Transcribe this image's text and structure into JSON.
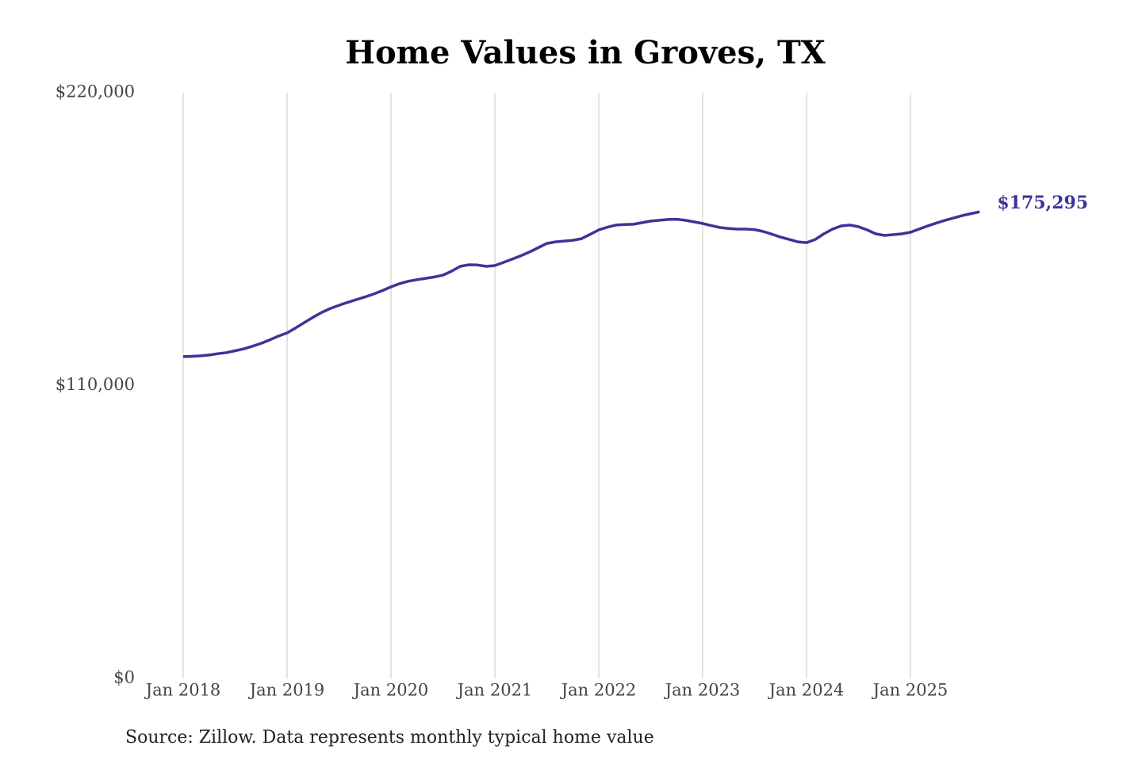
{
  "chart_data": {
    "type": "line",
    "title": "Home Values in Groves, TX",
    "source": "Source: Zillow. Data represents monthly typical home value",
    "categories": [
      "Jan 2018",
      null,
      null,
      null,
      null,
      null,
      null,
      null,
      null,
      null,
      null,
      null,
      "Jan 2019",
      null,
      null,
      null,
      null,
      null,
      null,
      null,
      null,
      null,
      null,
      null,
      "Jan 2020",
      null,
      null,
      null,
      null,
      null,
      null,
      null,
      null,
      null,
      null,
      null,
      "Jan 2021",
      null,
      null,
      null,
      null,
      null,
      null,
      null,
      null,
      null,
      null,
      null,
      "Jan 2022",
      null,
      null,
      null,
      null,
      null,
      null,
      null,
      null,
      null,
      null,
      null,
      "Jan 2023",
      null,
      null,
      null,
      null,
      null,
      null,
      null,
      null,
      null,
      null,
      null,
      "Jan 2024",
      null,
      null,
      null,
      null,
      null,
      null,
      null,
      null,
      null,
      null,
      null,
      "Jan 2025",
      null,
      null,
      null,
      null,
      null,
      null,
      null,
      null
    ],
    "series": [
      {
        "name": "Home value",
        "color": "#3b3598",
        "values": [
          120900,
          121000,
          121200,
          121500,
          122000,
          122400,
          123100,
          123800,
          124800,
          125900,
          127200,
          128600,
          129800,
          131700,
          133700,
          135700,
          137500,
          139000,
          140200,
          141300,
          142300,
          143300,
          144400,
          145700,
          147100,
          148300,
          149200,
          149800,
          150300,
          150800,
          151500,
          153000,
          154800,
          155400,
          155300,
          154800,
          155100,
          156300,
          157500,
          158800,
          160200,
          161800,
          163400,
          164000,
          164300,
          164600,
          165200,
          166800,
          168500,
          169500,
          170300,
          170500,
          170600,
          171200,
          171800,
          172100,
          172400,
          172500,
          172100,
          171500,
          170900,
          170100,
          169400,
          169000,
          168800,
          168800,
          168600,
          167900,
          166900,
          165800,
          164900,
          164000,
          163700,
          164900,
          167000,
          168800,
          170000,
          170300,
          169700,
          168500,
          167000,
          166400,
          166700,
          167000,
          167600,
          168800,
          170000,
          171100,
          172100,
          173000,
          173900,
          174600,
          175295
        ],
        "value_labels": [
          null,
          null,
          null,
          null,
          null,
          null,
          null,
          null,
          null,
          null,
          null,
          null,
          null,
          null,
          null,
          null,
          null,
          null,
          null,
          null,
          null,
          null,
          null,
          null,
          null,
          null,
          null,
          null,
          null,
          null,
          null,
          null,
          null,
          null,
          null,
          null,
          null,
          null,
          null,
          null,
          null,
          null,
          null,
          null,
          null,
          null,
          null,
          null,
          null,
          null,
          null,
          null,
          null,
          null,
          null,
          null,
          null,
          null,
          null,
          null,
          null,
          null,
          null,
          null,
          null,
          null,
          null,
          null,
          null,
          null,
          null,
          null,
          null,
          null,
          null,
          null,
          null,
          null,
          null,
          null,
          null,
          null,
          null,
          null,
          null,
          null,
          null,
          null,
          null,
          null,
          null,
          null,
          "$175,295"
        ]
      }
    ],
    "ylim": [
      0,
      220000
    ],
    "yticks": [
      {
        "value": 0,
        "label": "$0"
      },
      {
        "value": 110000,
        "label": "$110,000"
      },
      {
        "value": 220000,
        "label": "$220,000"
      }
    ],
    "grid": "x"
  }
}
